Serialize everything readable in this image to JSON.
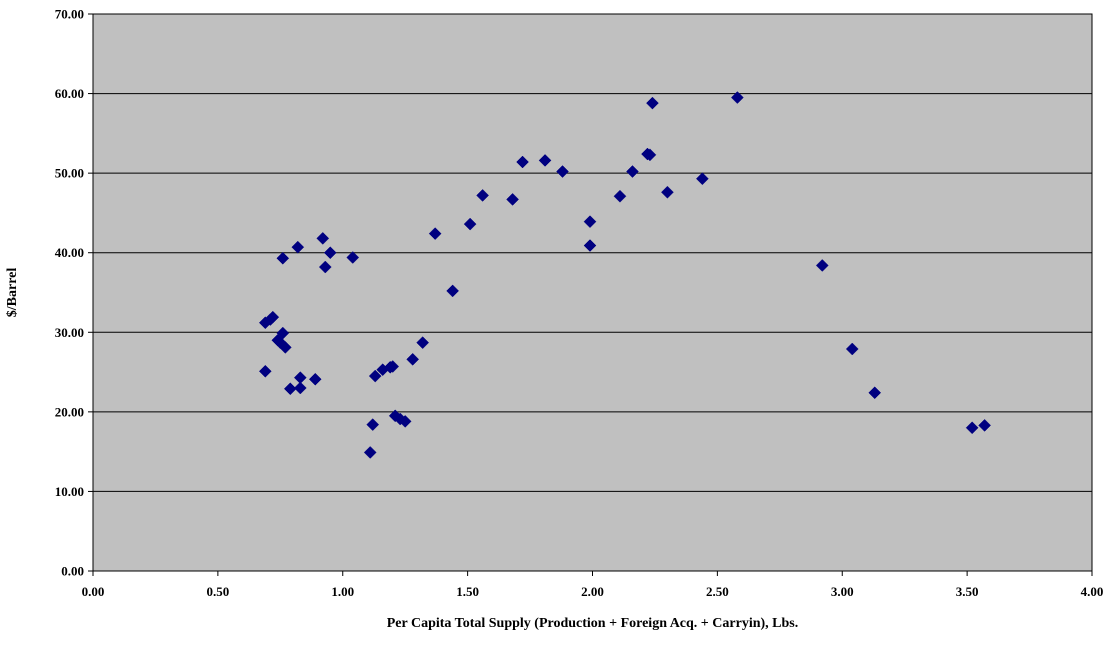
{
  "chart_data": {
    "type": "scatter",
    "title": "",
    "xlabel": "Per Capita Total Supply (Production + Foreign Acq. + Carryin), Lbs.",
    "ylabel": "$/Barrel",
    "xlim": [
      0,
      4
    ],
    "ylim": [
      0,
      70
    ],
    "x_ticks": [
      "0.00",
      "0.50",
      "1.00",
      "1.50",
      "2.00",
      "2.50",
      "3.00",
      "3.50",
      "4.00"
    ],
    "y_ticks": [
      "0.00",
      "10.00",
      "20.00",
      "30.00",
      "40.00",
      "50.00",
      "60.00",
      "70.00"
    ],
    "grid": "horizontal",
    "legend": "none",
    "colors": {
      "plot_background": "#c0c0c0",
      "marker": "#000080",
      "gridline": "#000000"
    },
    "marker_shape": "diamond",
    "points": [
      {
        "x": 0.69,
        "y": 31.2
      },
      {
        "x": 0.71,
        "y": 31.6
      },
      {
        "x": 0.72,
        "y": 31.9
      },
      {
        "x": 0.69,
        "y": 25.1
      },
      {
        "x": 0.74,
        "y": 29.0
      },
      {
        "x": 0.75,
        "y": 28.7
      },
      {
        "x": 0.76,
        "y": 29.9
      },
      {
        "x": 0.77,
        "y": 28.1
      },
      {
        "x": 0.76,
        "y": 39.3
      },
      {
        "x": 0.79,
        "y": 22.9
      },
      {
        "x": 0.82,
        "y": 40.7
      },
      {
        "x": 0.83,
        "y": 24.3
      },
      {
        "x": 0.83,
        "y": 23.0
      },
      {
        "x": 0.89,
        "y": 24.1
      },
      {
        "x": 0.92,
        "y": 41.8
      },
      {
        "x": 0.93,
        "y": 38.2
      },
      {
        "x": 0.95,
        "y": 40.0
      },
      {
        "x": 1.04,
        "y": 39.4
      },
      {
        "x": 1.11,
        "y": 14.9
      },
      {
        "x": 1.12,
        "y": 18.4
      },
      {
        "x": 1.13,
        "y": 24.5
      },
      {
        "x": 1.16,
        "y": 25.3
      },
      {
        "x": 1.19,
        "y": 25.6
      },
      {
        "x": 1.2,
        "y": 25.7
      },
      {
        "x": 1.21,
        "y": 19.5
      },
      {
        "x": 1.23,
        "y": 19.1
      },
      {
        "x": 1.25,
        "y": 18.8
      },
      {
        "x": 1.28,
        "y": 26.6
      },
      {
        "x": 1.32,
        "y": 28.7
      },
      {
        "x": 1.37,
        "y": 42.4
      },
      {
        "x": 1.44,
        "y": 35.2
      },
      {
        "x": 1.51,
        "y": 43.6
      },
      {
        "x": 1.56,
        "y": 47.2
      },
      {
        "x": 1.68,
        "y": 46.7
      },
      {
        "x": 1.72,
        "y": 51.4
      },
      {
        "x": 1.81,
        "y": 51.6
      },
      {
        "x": 1.88,
        "y": 50.2
      },
      {
        "x": 1.99,
        "y": 40.9
      },
      {
        "x": 1.99,
        "y": 43.9
      },
      {
        "x": 2.11,
        "y": 47.1
      },
      {
        "x": 2.16,
        "y": 50.2
      },
      {
        "x": 2.22,
        "y": 52.4
      },
      {
        "x": 2.23,
        "y": 52.3
      },
      {
        "x": 2.24,
        "y": 58.8
      },
      {
        "x": 2.3,
        "y": 47.6
      },
      {
        "x": 2.44,
        "y": 49.3
      },
      {
        "x": 2.58,
        "y": 59.5
      },
      {
        "x": 2.92,
        "y": 38.4
      },
      {
        "x": 3.04,
        "y": 27.9
      },
      {
        "x": 3.13,
        "y": 22.4
      },
      {
        "x": 3.52,
        "y": 18.0
      },
      {
        "x": 3.57,
        "y": 18.3
      }
    ]
  }
}
